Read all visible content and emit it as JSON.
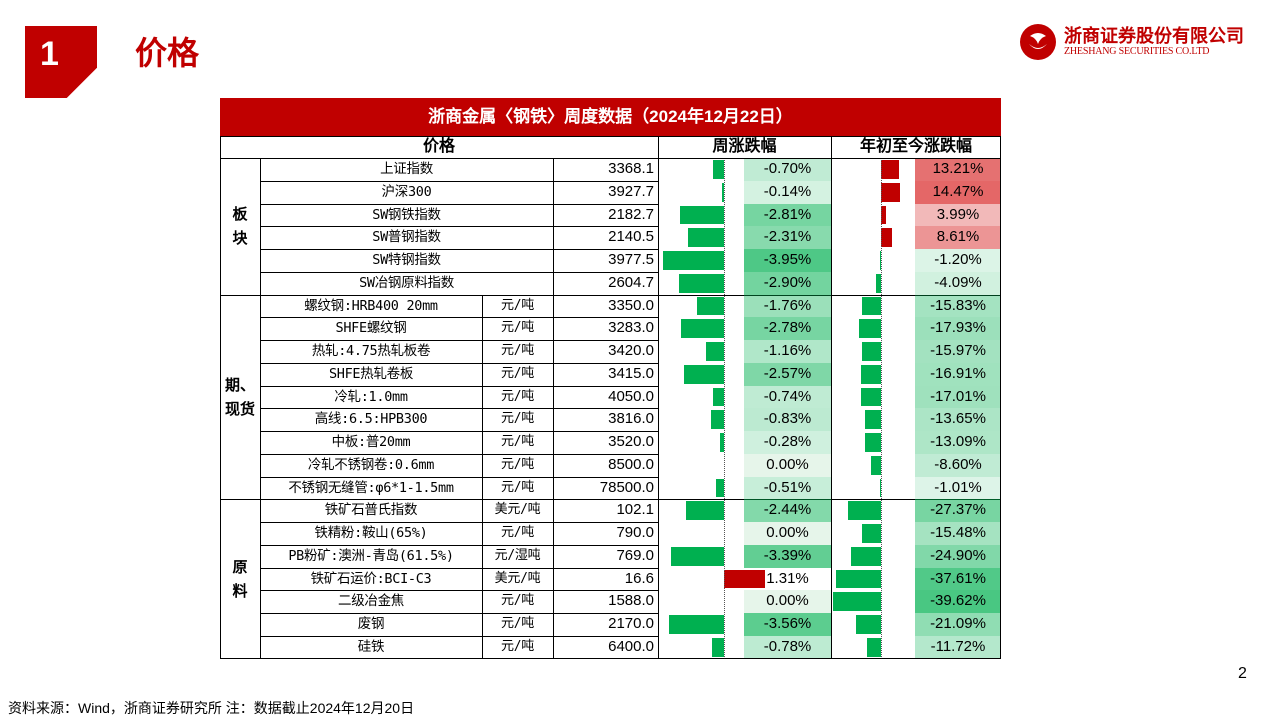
{
  "header": {
    "section_number": "1",
    "page_title": "价格",
    "logo_cn": "浙商证券股份有限公司",
    "logo_en": "ZHESHANG SECURITIES CO.LTD"
  },
  "table": {
    "title": "浙商金属〈钢铁〉周度数据（2024年12月22日）",
    "columns": {
      "price": "价格",
      "weekly": "周涨跌幅",
      "ytd": "年初至今涨跌幅"
    },
    "groups": [
      {
        "label": "板块",
        "rows": [
          {
            "name": "上证指数",
            "unit": "",
            "value": "3368.1",
            "weekly": "-0.70%",
            "weekly_num": -0.7,
            "ytd": "13.21%",
            "ytd_num": 13.21
          },
          {
            "name": "沪深300",
            "unit": "",
            "value": "3927.7",
            "weekly": "-0.14%",
            "weekly_num": -0.14,
            "ytd": "14.47%",
            "ytd_num": 14.47
          },
          {
            "name": "SW钢铁指数",
            "unit": "",
            "value": "2182.7",
            "weekly": "-2.81%",
            "weekly_num": -2.81,
            "ytd": "3.99%",
            "ytd_num": 3.99
          },
          {
            "name": "SW普钢指数",
            "unit": "",
            "value": "2140.5",
            "weekly": "-2.31%",
            "weekly_num": -2.31,
            "ytd": "8.61%",
            "ytd_num": 8.61
          },
          {
            "name": "SW特钢指数",
            "unit": "",
            "value": "3977.5",
            "weekly": "-3.95%",
            "weekly_num": -3.95,
            "ytd": "-1.20%",
            "ytd_num": -1.2
          },
          {
            "name": "SW冶钢原料指数",
            "unit": "",
            "value": "2604.7",
            "weekly": "-2.90%",
            "weekly_num": -2.9,
            "ytd": "-4.09%",
            "ytd_num": -4.09
          }
        ]
      },
      {
        "label": "期、现货",
        "rows": [
          {
            "name": "螺纹钢:HRB400 20mm",
            "unit": "元/吨",
            "value": "3350.0",
            "weekly": "-1.76%",
            "weekly_num": -1.76,
            "ytd": "-15.83%",
            "ytd_num": -15.83
          },
          {
            "name": "SHFE螺纹钢",
            "unit": "元/吨",
            "value": "3283.0",
            "weekly": "-2.78%",
            "weekly_num": -2.78,
            "ytd": "-17.93%",
            "ytd_num": -17.93
          },
          {
            "name": "热轧:4.75热轧板卷",
            "unit": "元/吨",
            "value": "3420.0",
            "weekly": "-1.16%",
            "weekly_num": -1.16,
            "ytd": "-15.97%",
            "ytd_num": -15.97
          },
          {
            "name": "SHFE热轧卷板",
            "unit": "元/吨",
            "value": "3415.0",
            "weekly": "-2.57%",
            "weekly_num": -2.57,
            "ytd": "-16.91%",
            "ytd_num": -16.91
          },
          {
            "name": "冷轧:1.0mm",
            "unit": "元/吨",
            "value": "4050.0",
            "weekly": "-0.74%",
            "weekly_num": -0.74,
            "ytd": "-17.01%",
            "ytd_num": -17.01
          },
          {
            "name": "高线:6.5:HPB300",
            "unit": "元/吨",
            "value": "3816.0",
            "weekly": "-0.83%",
            "weekly_num": -0.83,
            "ytd": "-13.65%",
            "ytd_num": -13.65
          },
          {
            "name": "中板:普20mm",
            "unit": "元/吨",
            "value": "3520.0",
            "weekly": "-0.28%",
            "weekly_num": -0.28,
            "ytd": "-13.09%",
            "ytd_num": -13.09
          },
          {
            "name": "冷轧不锈钢卷:0.6mm",
            "unit": "元/吨",
            "value": "8500.0",
            "weekly": "0.00%",
            "weekly_num": 0.0,
            "ytd": "-8.60%",
            "ytd_num": -8.6
          },
          {
            "name": "不锈钢无缝管:φ6*1-1.5mm",
            "unit": "元/吨",
            "value": "78500.0",
            "weekly": "-0.51%",
            "weekly_num": -0.51,
            "ytd": "-1.01%",
            "ytd_num": -1.01
          }
        ]
      },
      {
        "label": "原料",
        "rows": [
          {
            "name": "铁矿石普氏指数",
            "unit": "美元/吨",
            "value": "102.1",
            "weekly": "-2.44%",
            "weekly_num": -2.44,
            "ytd": "-27.37%",
            "ytd_num": -27.37
          },
          {
            "name": "铁精粉:鞍山(65%)",
            "unit": "元/吨",
            "value": "790.0",
            "weekly": "0.00%",
            "weekly_num": 0.0,
            "ytd": "-15.48%",
            "ytd_num": -15.48
          },
          {
            "name": "PB粉矿:澳洲-青岛(61.5%)",
            "unit": "元/湿吨",
            "value": "769.0",
            "weekly": "-3.39%",
            "weekly_num": -3.39,
            "ytd": "-24.90%",
            "ytd_num": -24.9
          },
          {
            "name": "铁矿石运价:BCI-C3",
            "unit": "美元/吨",
            "value": "16.6",
            "weekly": "1.31%",
            "weekly_num": 1.31,
            "ytd": "-37.61%",
            "ytd_num": -37.61
          },
          {
            "name": "二级冶金焦",
            "unit": "元/吨",
            "value": "1588.0",
            "weekly": "0.00%",
            "weekly_num": 0.0,
            "ytd": "-39.62%",
            "ytd_num": -39.62
          },
          {
            "name": "废钢",
            "unit": "元/吨",
            "value": "2170.0",
            "weekly": "-3.56%",
            "weekly_num": -3.56,
            "ytd": "-21.09%",
            "ytd_num": -21.09
          },
          {
            "name": "硅铁",
            "unit": "元/吨",
            "value": "6400.0",
            "weekly": "-0.78%",
            "weekly_num": -0.78,
            "ytd": "-11.72%",
            "ytd_num": -11.72
          }
        ]
      }
    ]
  },
  "footer": {
    "source": "资料来源：Wind，浙商证券研究所   注：数据截止2024年12月20日",
    "page_number": "2"
  },
  "colors": {
    "accent": "#c00000",
    "bar_green": "#00b050",
    "bar_red": "#c00000"
  }
}
